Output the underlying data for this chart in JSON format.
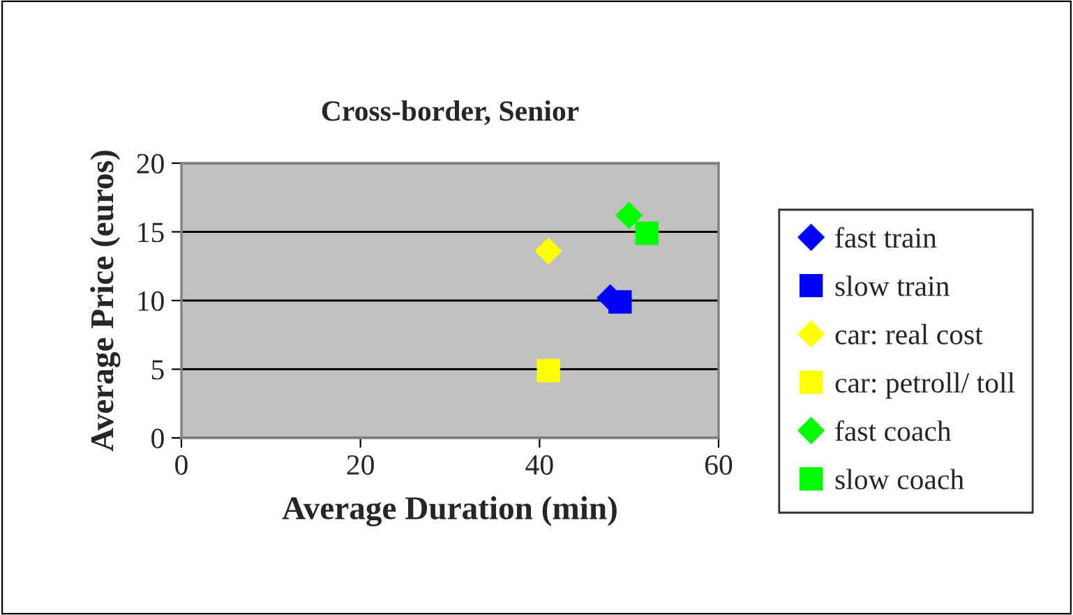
{
  "chart_data": {
    "type": "scatter",
    "title": "Cross-border, Senior",
    "xlabel": "Average Duration (min)",
    "ylabel": "Average Price (euros)",
    "xlim": [
      0,
      60
    ],
    "xticks": [
      0,
      20,
      40,
      60
    ],
    "ylim": [
      0,
      20
    ],
    "yticks": [
      0,
      5,
      10,
      15,
      20
    ],
    "grid": "y",
    "legend": "right",
    "series": [
      {
        "name": "fast train",
        "color": "#0000ff",
        "marker": "diamond",
        "x": [
          47.9
        ],
        "values": [
          10.2
        ]
      },
      {
        "name": "slow train",
        "color": "#0000ff",
        "marker": "square",
        "x": [
          49.0
        ],
        "values": [
          9.9
        ]
      },
      {
        "name": "car: real cost",
        "color": "#ffff00",
        "marker": "diamond",
        "x": [
          41.0
        ],
        "values": [
          13.6
        ]
      },
      {
        "name": "car: petroll/ toll",
        "color": "#ffff00",
        "marker": "square",
        "x": [
          41.0
        ],
        "values": [
          4.9
        ]
      },
      {
        "name": "fast coach",
        "color": "#00ff00",
        "marker": "diamond",
        "x": [
          50.0
        ],
        "values": [
          16.2
        ]
      },
      {
        "name": "slow coach",
        "color": "#00ff00",
        "marker": "square",
        "x": [
          52.0
        ],
        "values": [
          14.9
        ]
      }
    ]
  }
}
